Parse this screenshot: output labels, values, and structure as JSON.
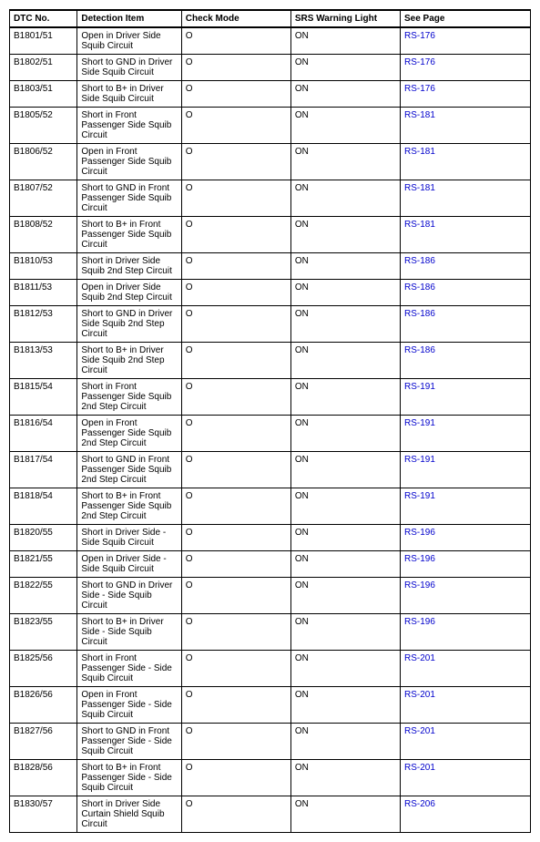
{
  "table": {
    "columns": [
      "DTC No.",
      "Detection Item",
      "Check Mode",
      "SRS Warning Light",
      "See Page"
    ],
    "link_color": "#0000cc",
    "rows": [
      {
        "dtc": "B1801/51",
        "item": "Open in Driver Side Squib Circuit",
        "check": "O",
        "srs": "ON",
        "page": "RS-176"
      },
      {
        "dtc": "B1802/51",
        "item": "Short to GND in Driver Side Squib Circuit",
        "check": "O",
        "srs": "ON",
        "page": "RS-176"
      },
      {
        "dtc": "B1803/51",
        "item": "Short to B+ in Driver Side Squib Circuit",
        "check": "O",
        "srs": "ON",
        "page": "RS-176"
      },
      {
        "dtc": "B1805/52",
        "item": "Short in Front Passenger Side Squib Circuit",
        "check": "O",
        "srs": "ON",
        "page": "RS-181"
      },
      {
        "dtc": "B1806/52",
        "item": "Open in Front Passenger Side Squib Circuit",
        "check": "O",
        "srs": "ON",
        "page": "RS-181"
      },
      {
        "dtc": "B1807/52",
        "item": "Short to GND in Front Passenger Side Squib Circuit",
        "check": "O",
        "srs": "ON",
        "page": "RS-181"
      },
      {
        "dtc": "B1808/52",
        "item": "Short to B+ in Front Passenger Side Squib Circuit",
        "check": "O",
        "srs": "ON",
        "page": "RS-181"
      },
      {
        "dtc": "B1810/53",
        "item": "Short in Driver Side Squib 2nd Step Circuit",
        "check": "O",
        "srs": "ON",
        "page": "RS-186"
      },
      {
        "dtc": "B1811/53",
        "item": "Open in Driver Side Squib 2nd Step Circuit",
        "check": "O",
        "srs": "ON",
        "page": "RS-186"
      },
      {
        "dtc": "B1812/53",
        "item": "Short to GND in Driver Side Squib 2nd Step Circuit",
        "check": "O",
        "srs": "ON",
        "page": "RS-186"
      },
      {
        "dtc": "B1813/53",
        "item": "Short to B+ in Driver Side Squib 2nd Step Circuit",
        "check": "O",
        "srs": "ON",
        "page": "RS-186"
      },
      {
        "dtc": "B1815/54",
        "item": "Short in Front Passenger Side Squib 2nd Step Circuit",
        "check": "O",
        "srs": "ON",
        "page": "RS-191"
      },
      {
        "dtc": "B1816/54",
        "item": "Open in Front Passenger Side Squib 2nd Step Circuit",
        "check": "O",
        "srs": "ON",
        "page": "RS-191"
      },
      {
        "dtc": "B1817/54",
        "item": "Short to GND in Front Passenger Side Squib 2nd Step Circuit",
        "check": "O",
        "srs": "ON",
        "page": "RS-191"
      },
      {
        "dtc": "B1818/54",
        "item": "Short to B+ in Front Passenger Side Squib 2nd Step Circuit",
        "check": "O",
        "srs": "ON",
        "page": "RS-191"
      },
      {
        "dtc": "B1820/55",
        "item": "Short in Driver Side - Side Squib Circuit",
        "check": "O",
        "srs": "ON",
        "page": "RS-196"
      },
      {
        "dtc": "B1821/55",
        "item": "Open in Driver Side - Side Squib Circuit",
        "check": "O",
        "srs": "ON",
        "page": "RS-196"
      },
      {
        "dtc": "B1822/55",
        "item": "Short to GND in Driver Side - Side Squib Circuit",
        "check": "O",
        "srs": "ON",
        "page": "RS-196"
      },
      {
        "dtc": "B1823/55",
        "item": "Short to B+ in Driver Side - Side Squib Circuit",
        "check": "O",
        "srs": "ON",
        "page": "RS-196"
      },
      {
        "dtc": "B1825/56",
        "item": "Short in Front Passenger Side - Side Squib Circuit",
        "check": "O",
        "srs": "ON",
        "page": "RS-201"
      },
      {
        "dtc": "B1826/56",
        "item": "Open in Front Passenger Side - Side Squib Circuit",
        "check": "O",
        "srs": "ON",
        "page": "RS-201"
      },
      {
        "dtc": "B1827/56",
        "item": "Short to GND in Front Passenger Side - Side Squib Circuit",
        "check": "O",
        "srs": "ON",
        "page": "RS-201"
      },
      {
        "dtc": "B1828/56",
        "item": "Short to B+ in Front Passenger Side - Side Squib Circuit",
        "check": "O",
        "srs": "ON",
        "page": "RS-201"
      },
      {
        "dtc": "B1830/57",
        "item": "Short in Driver Side Curtain Shield Squib Circuit",
        "check": "O",
        "srs": "ON",
        "page": "RS-206"
      }
    ]
  }
}
